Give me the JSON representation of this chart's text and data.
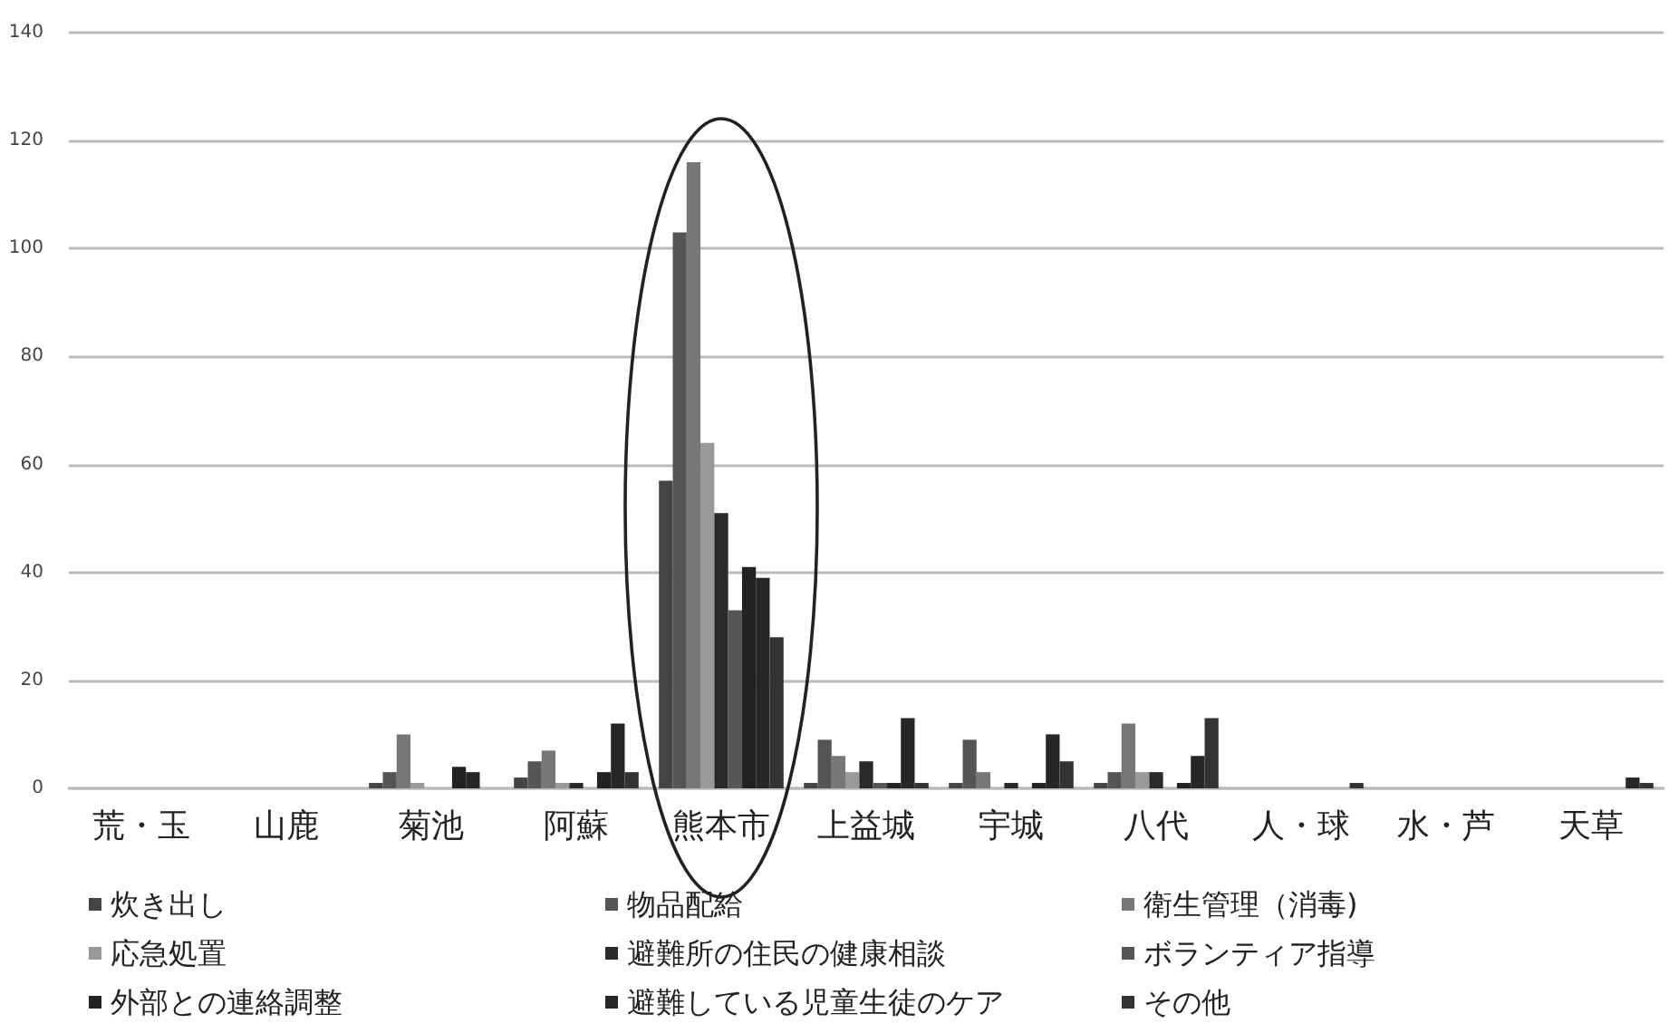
{
  "chart_data": {
    "type": "bar",
    "categories": [
      "荒・玉",
      "山鹿",
      "菊池",
      "阿蘇",
      "熊本市",
      "上益城",
      "宇城",
      "八代",
      "人・球",
      "水・芦",
      "天草"
    ],
    "series": [
      {
        "name": "炊き出し",
        "color": "#444444",
        "values": [
          0,
          0,
          1,
          2,
          57,
          1,
          1,
          1,
          0,
          0,
          0
        ]
      },
      {
        "name": "物品配給",
        "color": "#555555",
        "values": [
          0,
          0,
          3,
          5,
          103,
          9,
          9,
          3,
          0,
          0,
          0
        ]
      },
      {
        "name": "衛生管理（消毒)",
        "color": "#777777",
        "values": [
          0,
          0,
          10,
          7,
          116,
          6,
          3,
          12,
          0,
          0,
          0
        ]
      },
      {
        "name": "応急処置",
        "color": "#999999",
        "values": [
          0,
          0,
          1,
          1,
          64,
          3,
          0,
          3,
          0,
          0,
          0
        ]
      },
      {
        "name": "避難所の住民の健康相談",
        "color": "#2a2a2a",
        "values": [
          0,
          0,
          0,
          1,
          51,
          5,
          1,
          3,
          0,
          0,
          0
        ]
      },
      {
        "name": "ボランティア指導",
        "color": "#555555",
        "values": [
          0,
          0,
          0,
          0,
          33,
          1,
          0,
          0,
          0,
          0,
          0
        ]
      },
      {
        "name": "外部との連絡調整",
        "color": "#222222",
        "values": [
          0,
          0,
          4,
          3,
          41,
          1,
          1,
          1,
          0,
          0,
          0
        ]
      },
      {
        "name": "避難している児童生徒のケア",
        "color": "#262626",
        "values": [
          0,
          0,
          3,
          12,
          39,
          13,
          10,
          6,
          0,
          0,
          2
        ]
      },
      {
        "name": "その他",
        "color": "#333333",
        "values": [
          0,
          0,
          0,
          3,
          28,
          1,
          5,
          13,
          1,
          0,
          1
        ]
      }
    ],
    "ylim": [
      0,
      140
    ],
    "yticks": [
      0,
      20,
      40,
      60,
      80,
      100,
      120,
      140
    ],
    "grid": "y",
    "legend": "bottom"
  }
}
